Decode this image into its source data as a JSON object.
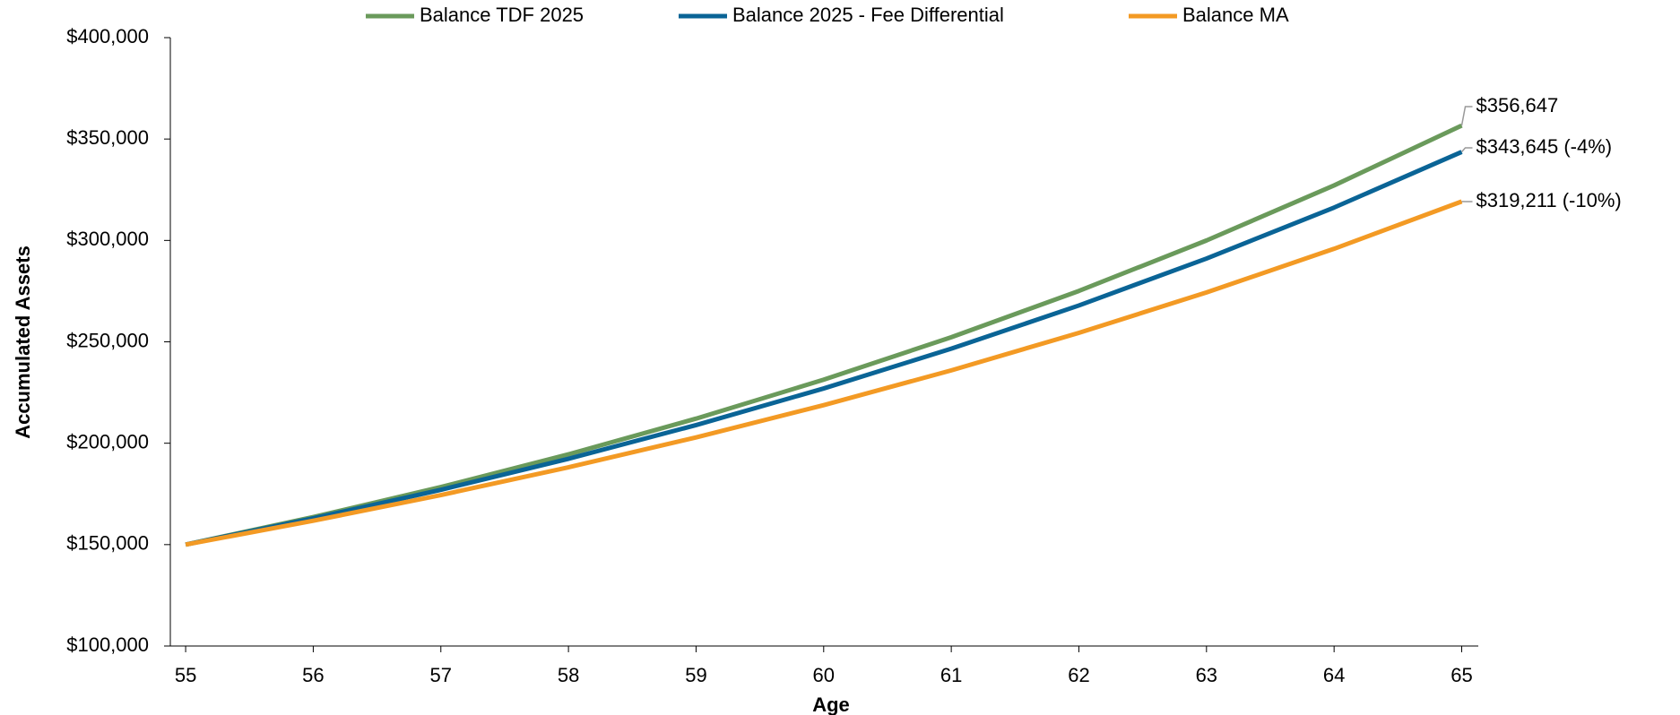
{
  "chart_data": {
    "type": "line",
    "x_label": "Age",
    "y_label": "Accumulated Assets",
    "x": [
      55,
      56,
      57,
      58,
      59,
      60,
      61,
      62,
      63,
      64,
      65
    ],
    "xlim": [
      54.88,
      65.13
    ],
    "xticks": [
      55,
      56,
      57,
      58,
      59,
      60,
      61,
      62,
      63,
      64,
      65
    ],
    "ylim": [
      100000,
      400000
    ],
    "yticks": [
      {
        "value": 100000,
        "label": "$100,000"
      },
      {
        "value": 150000,
        "label": "$150,000"
      },
      {
        "value": 200000,
        "label": "$200,000"
      },
      {
        "value": 250000,
        "label": "$250,000"
      },
      {
        "value": 300000,
        "label": "$300,000"
      },
      {
        "value": 350000,
        "label": "$350,000"
      },
      {
        "value": 400000,
        "label": "$400,000"
      }
    ],
    "legend": "top",
    "series": [
      {
        "name": "Balance TDF 2025",
        "color": "#6a9a5b",
        "values": [
          150000,
          163575,
          178380,
          194520,
          212130,
          231320,
          252260,
          275090,
          299980,
          327130,
          356647
        ],
        "end_label": "$356,647"
      },
      {
        "name": "Balance 2025 - Fee Differential",
        "color": "#0a6496",
        "values": [
          150000,
          162960,
          177040,
          192330,
          208950,
          227000,
          246610,
          267920,
          291060,
          316210,
          343645
        ],
        "end_label": "$343,645 (-4%)"
      },
      {
        "name": "Balance MA",
        "color": "#f39a24",
        "values": [
          150000,
          161760,
          174440,
          188120,
          202870,
          218770,
          235920,
          254420,
          274370,
          295880,
          319211
        ],
        "end_label": "$319,211 (-10%)"
      }
    ]
  }
}
